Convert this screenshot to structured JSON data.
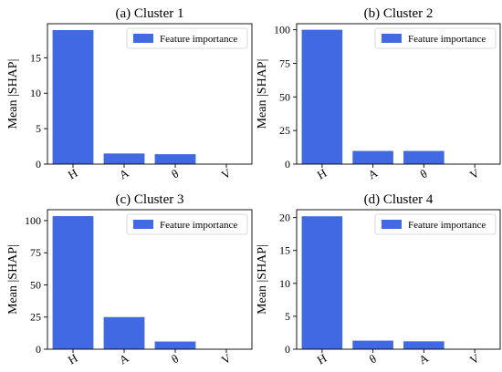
{
  "chart_data": [
    {
      "type": "bar",
      "title": "(a) Cluster 1",
      "ylabel": "Mean |SHAP|",
      "xlabel": "",
      "categories": [
        "H",
        "A",
        "θ",
        "V"
      ],
      "series": [
        {
          "name": "Feature importance",
          "values": [
            18.9,
            1.5,
            1.4,
            0.0
          ]
        }
      ],
      "ylim": [
        0,
        19.8
      ],
      "yticks": [
        0,
        5,
        10,
        15
      ],
      "legend": "top-right",
      "grid": false,
      "color": "#4169e1"
    },
    {
      "type": "bar",
      "title": "(b) Cluster 2",
      "ylabel": "Mean |SHAP|",
      "xlabel": "",
      "categories": [
        "H",
        "A",
        "θ",
        "V"
      ],
      "series": [
        {
          "name": "Feature importance",
          "values": [
            100.0,
            9.8,
            9.8,
            0.0
          ]
        }
      ],
      "ylim": [
        0,
        104.5
      ],
      "yticks": [
        0,
        25,
        50,
        75,
        100
      ],
      "legend": "top-right",
      "grid": false,
      "color": "#4169e1"
    },
    {
      "type": "bar",
      "title": "(c) Cluster 3",
      "ylabel": "Mean |SHAP|",
      "xlabel": "",
      "categories": [
        "H",
        "A",
        "θ",
        "V"
      ],
      "series": [
        {
          "name": "Feature importance",
          "values": [
            103.5,
            25.0,
            6.0,
            0.0
          ]
        }
      ],
      "ylim": [
        0,
        108.5
      ],
      "yticks": [
        0,
        25,
        50,
        75,
        100
      ],
      "legend": "top-right",
      "grid": false,
      "color": "#4169e1"
    },
    {
      "type": "bar",
      "title": "(d) Cluster 4",
      "ylabel": "Mean |SHAP|",
      "xlabel": "",
      "categories": [
        "H",
        "θ",
        "A",
        "V"
      ],
      "series": [
        {
          "name": "Feature importance",
          "values": [
            20.2,
            1.3,
            1.2,
            0.0
          ]
        }
      ],
      "ylim": [
        0,
        21.2
      ],
      "yticks": [
        0,
        5,
        10,
        15,
        20
      ],
      "legend": "top-right",
      "grid": false,
      "color": "#4169e1"
    }
  ]
}
